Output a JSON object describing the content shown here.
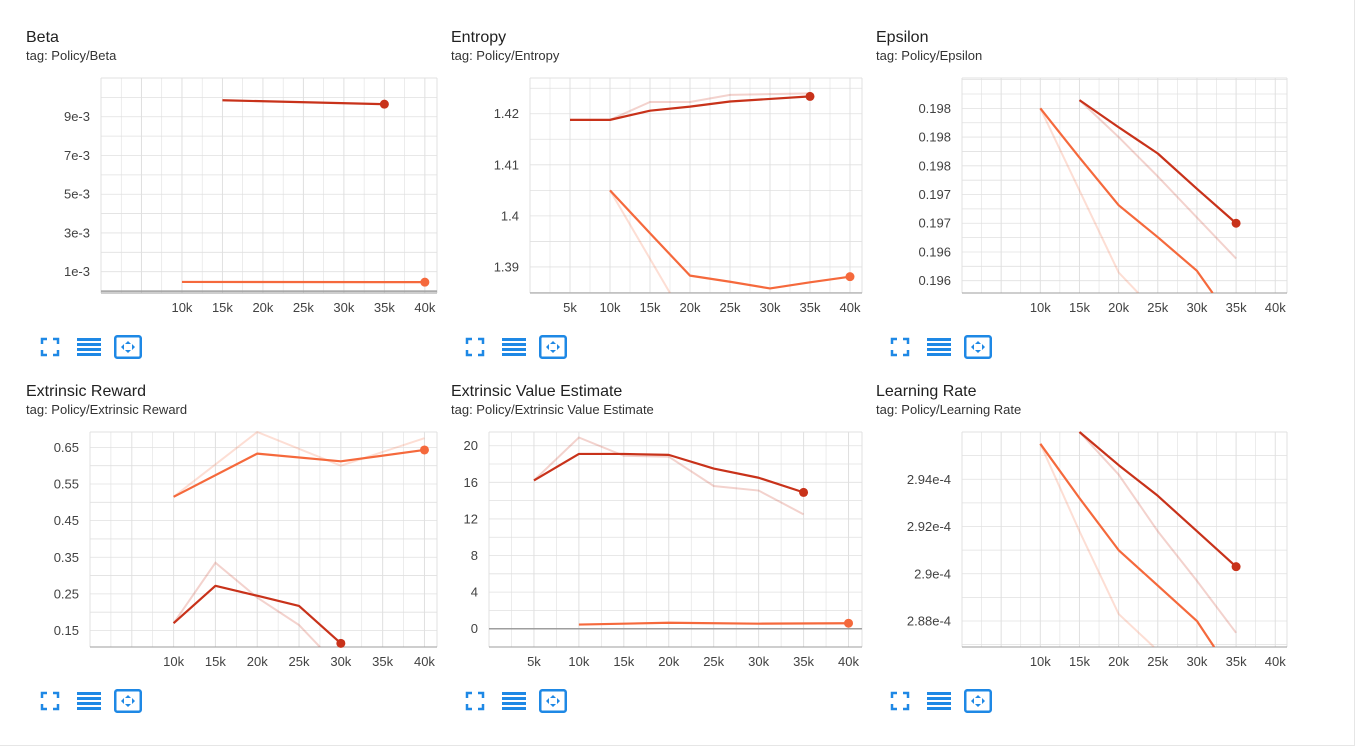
{
  "colors": {
    "dark": "#c8321a",
    "light": "#f5693c",
    "grid": "#e0e0e0",
    "axis": "#9e9e9e",
    "icon": "#1e88e5"
  },
  "toolbar_icons": [
    "fit-screen-icon",
    "data-table-icon",
    "expand-chart-icon"
  ],
  "cards": [
    {
      "title": "Beta",
      "tag": "tag: Policy/Beta",
      "chart_data": {
        "type": "line",
        "x_ticks": [
          "10k",
          "15k",
          "20k",
          "25k",
          "30k",
          "35k",
          "40k"
        ],
        "x_tick_values": [
          10000,
          15000,
          20000,
          25000,
          30000,
          35000,
          40000
        ],
        "y_ticks": [
          "1e-3",
          "3e-3",
          "5e-3",
          "7e-3",
          "9e-3"
        ],
        "y_tick_values": [
          0.001,
          0.003,
          0.005,
          0.007,
          0.009
        ],
        "xlim": [
          0,
          41500
        ],
        "ylim": [
          -0.0001,
          0.011
        ],
        "series": [
          {
            "color": "dark",
            "x": [
              15000,
              35000
            ],
            "y": [
              0.00985,
              0.00965
            ]
          },
          {
            "color": "light",
            "x": [
              10000,
              40000
            ],
            "y": [
              0.00047,
              0.00046
            ]
          }
        ]
      }
    },
    {
      "title": "Entropy",
      "tag": "tag: Policy/Entropy",
      "chart_data": {
        "type": "line",
        "x_ticks": [
          "5k",
          "10k",
          "15k",
          "20k",
          "25k",
          "30k",
          "35k",
          "40k"
        ],
        "x_tick_values": [
          5000,
          10000,
          15000,
          20000,
          25000,
          30000,
          35000,
          40000
        ],
        "y_ticks": [
          "1.39",
          "1.4",
          "1.41",
          "1.42"
        ],
        "y_tick_values": [
          1.39,
          1.4,
          1.41,
          1.42
        ],
        "xlim": [
          0,
          41500
        ],
        "ylim": [
          1.3849,
          1.427
        ],
        "series": [
          {
            "color": "dark",
            "faded_x": [
              5000,
              10000,
              15000,
              20000,
              25000,
              35000
            ],
            "faded_y": [
              1.4188,
              1.4188,
              1.4223,
              1.4223,
              1.4237,
              1.424
            ],
            "x": [
              5000,
              10000,
              15000,
              20000,
              25000,
              30000,
              35000
            ],
            "y": [
              1.4188,
              1.4188,
              1.4206,
              1.4214,
              1.4224,
              1.4229,
              1.4234
            ]
          },
          {
            "color": "light",
            "faded_x": [
              10000,
              17500
            ],
            "faded_y": [
              1.405,
              1.3849
            ],
            "x": [
              10000,
              15000,
              20000,
              25000,
              30000,
              35000,
              40000
            ],
            "y": [
              1.405,
              1.3966,
              1.3883,
              1.3871,
              1.3858,
              1.387,
              1.3881
            ]
          }
        ]
      }
    },
    {
      "title": "Epsilon",
      "tag": "tag: Policy/Epsilon",
      "chart_data": {
        "type": "line",
        "x_ticks": [
          "10k",
          "15k",
          "20k",
          "25k",
          "30k",
          "35k",
          "40k"
        ],
        "x_tick_values": [
          10000,
          15000,
          20000,
          25000,
          30000,
          35000,
          40000
        ],
        "y_ticks": [
          "0.196",
          "0.196",
          "0.197",
          "0.197",
          "0.198",
          "0.198",
          "0.198"
        ],
        "y_tick_values": [
          0.19585,
          0.1962,
          0.19655,
          0.1969,
          0.19725,
          0.1976,
          0.19795
        ],
        "xlim": [
          0,
          41500
        ],
        "ylim": [
          0.1957,
          0.19832
        ],
        "series": [
          {
            "color": "dark",
            "faded_x": [
              15000,
              20000,
              25000,
              30000,
              35000
            ],
            "faded_y": [
              0.19805,
              0.1976,
              0.19712,
              0.19662,
              0.19612
            ],
            "x": [
              15000,
              20000,
              25000,
              30000,
              35000
            ],
            "y": [
              0.19805,
              0.19772,
              0.1974,
              0.19697,
              0.19655
            ]
          },
          {
            "color": "light",
            "faded_x": [
              10000,
              15000,
              20000,
              22500
            ],
            "faded_y": [
              0.19795,
              0.19695,
              0.19595,
              0.1957
            ],
            "x": [
              10000,
              15000,
              20000,
              25000,
              30000,
              32000
            ],
            "y": [
              0.19795,
              0.19735,
              0.19677,
              0.19638,
              0.19597,
              0.1957
            ]
          }
        ]
      }
    },
    {
      "title": "Extrinsic Reward",
      "tag": "tag: Policy/Extrinsic Reward",
      "chart_data": {
        "type": "line",
        "x_ticks": [
          "10k",
          "15k",
          "20k",
          "25k",
          "30k",
          "35k",
          "40k"
        ],
        "x_tick_values": [
          10000,
          15000,
          20000,
          25000,
          30000,
          35000,
          40000
        ],
        "y_ticks": [
          "0.15",
          "0.25",
          "0.35",
          "0.45",
          "0.55",
          "0.65"
        ],
        "y_tick_values": [
          0.15,
          0.25,
          0.35,
          0.45,
          0.55,
          0.65
        ],
        "xlim": [
          0,
          41500
        ],
        "ylim": [
          0.105,
          0.692
        ],
        "series": [
          {
            "color": "light",
            "faded_x": [
              10000,
              20000,
              30000,
              40000
            ],
            "faded_y": [
              0.515,
              0.692,
              0.6,
              0.675
            ],
            "x": [
              10000,
              20000,
              30000,
              40000
            ],
            "y": [
              0.515,
              0.633,
              0.612,
              0.643
            ]
          },
          {
            "color": "dark",
            "faded_x": [
              10000,
              15000,
              20000,
              25000,
              27500
            ],
            "faded_y": [
              0.17,
              0.335,
              0.24,
              0.165,
              0.105
            ],
            "x": [
              10000,
              15000,
              20000,
              25000,
              30000
            ],
            "y": [
              0.17,
              0.272,
              0.245,
              0.217,
              0.115
            ]
          }
        ]
      }
    },
    {
      "title": "Extrinsic Value Estimate",
      "tag": "tag: Policy/Extrinsic Value Estimate",
      "chart_data": {
        "type": "line",
        "x_ticks": [
          "5k",
          "10k",
          "15k",
          "20k",
          "25k",
          "30k",
          "35k",
          "40k"
        ],
        "x_tick_values": [
          5000,
          10000,
          15000,
          20000,
          25000,
          30000,
          35000,
          40000
        ],
        "y_ticks": [
          "0",
          "4",
          "8",
          "12",
          "16",
          "20"
        ],
        "y_tick_values": [
          0,
          4,
          8,
          12,
          16,
          20
        ],
        "xlim": [
          0,
          41500
        ],
        "ylim": [
          -2.0,
          21.5
        ],
        "series": [
          {
            "color": "dark",
            "faded_x": [
              5000,
              10000,
              15000,
              20000,
              25000,
              30000,
              35000
            ],
            "faded_y": [
              16.2,
              20.9,
              18.9,
              18.8,
              15.6,
              15.1,
              12.5
            ],
            "x": [
              5000,
              10000,
              15000,
              20000,
              25000,
              30000,
              35000
            ],
            "y": [
              16.2,
              19.1,
              19.1,
              19.0,
              17.5,
              16.5,
              14.9
            ]
          },
          {
            "color": "light",
            "x": [
              10000,
              20000,
              30000,
              40000
            ],
            "y": [
              0.45,
              0.65,
              0.55,
              0.6
            ]
          }
        ]
      }
    },
    {
      "title": "Learning Rate",
      "tag": "tag: Policy/Learning Rate",
      "chart_data": {
        "type": "line",
        "x_ticks": [
          "10k",
          "15k",
          "20k",
          "25k",
          "30k",
          "35k",
          "40k"
        ],
        "x_tick_values": [
          10000,
          15000,
          20000,
          25000,
          30000,
          35000,
          40000
        ],
        "y_ticks": [
          "2.88e-4",
          "2.9e-4",
          "2.92e-4",
          "2.94e-4"
        ],
        "y_tick_values": [
          0.000288,
          0.00029,
          0.000292,
          0.000294
        ],
        "xlim": [
          0,
          41500
        ],
        "ylim": [
          0.0002869,
          0.000296
        ],
        "series": [
          {
            "color": "dark",
            "faded_x": [
              15000,
              20000,
              25000,
              30000,
              35000
            ],
            "faded_y": [
              0.000296,
              0.0002942,
              0.0002918,
              0.0002897,
              0.0002875
            ],
            "x": [
              15000,
              20000,
              25000,
              30000,
              35000
            ],
            "y": [
              0.000296,
              0.0002946,
              0.0002933,
              0.0002918,
              0.0002903
            ]
          },
          {
            "color": "light",
            "faded_x": [
              10000,
              15000,
              20000,
              24500
            ],
            "faded_y": [
              0.0002955,
              0.0002918,
              0.0002883,
              0.0002869
            ],
            "x": [
              10000,
              15000,
              20000,
              25000,
              30000,
              32200
            ],
            "y": [
              0.0002955,
              0.0002932,
              0.000291,
              0.0002895,
              0.000288,
              0.0002869
            ]
          }
        ]
      }
    }
  ]
}
